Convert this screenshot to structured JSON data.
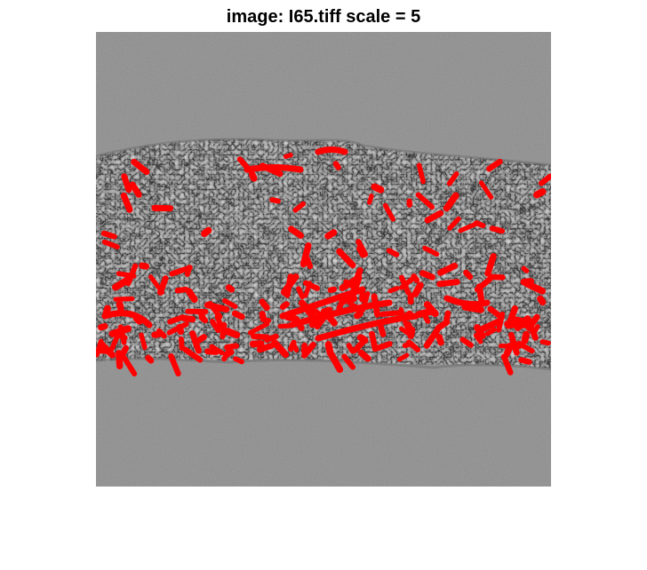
{
  "figure": {
    "title": "image: I65.tiff scale = 5"
  },
  "image": {
    "background_color": "#8c8c8c",
    "overlay_color": "#ff0000",
    "content": "grayscale microscopy image with red detected-filament overlay"
  }
}
